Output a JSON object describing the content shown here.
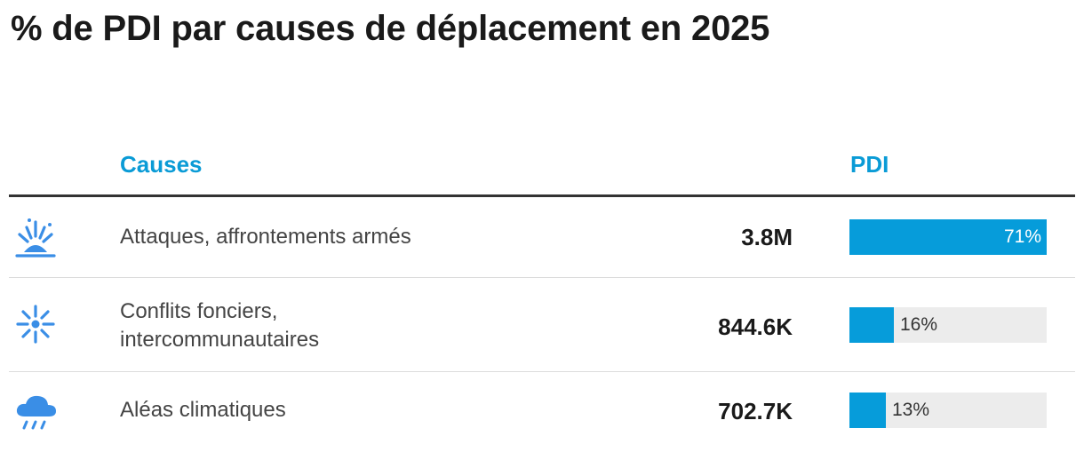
{
  "title": "% de PDI par causes de déplacement en 2025",
  "headers": {
    "causes": "Causes",
    "pdi": "PDI"
  },
  "colors": {
    "accent": "#0a9bd6",
    "bar": "#069cda",
    "track": "#ececec",
    "icon": "#3a8ee6"
  },
  "rows": [
    {
      "label_lines": [
        "Attaques, affrontements armés"
      ],
      "value": "3.8M",
      "pct_label": "71%",
      "pct": 100,
      "icon": "explosion-icon"
    },
    {
      "label_lines": [
        "Conflits fonciers,",
        "intercommunautaires"
      ],
      "value": "844.6K",
      "pct_label": "16%",
      "pct": 22.5,
      "icon": "burst-icon"
    },
    {
      "label_lines": [
        "Aléas climatiques"
      ],
      "value": "702.7K",
      "pct_label": "13%",
      "pct": 18.3,
      "icon": "rain-cloud-icon"
    }
  ],
  "chart_data": {
    "type": "bar",
    "title": "% de PDI par causes de déplacement en 2025",
    "categories": [
      "Attaques, affrontements armés",
      "Conflits fonciers, intercommunautaires",
      "Aléas climatiques"
    ],
    "values": [
      3800000,
      844600,
      702700
    ],
    "value_labels": [
      "3.8M",
      "844.6K",
      "702.7K"
    ],
    "percent_labels": [
      "71%",
      "16%",
      "13%"
    ],
    "xlabel": "",
    "ylabel": ""
  }
}
